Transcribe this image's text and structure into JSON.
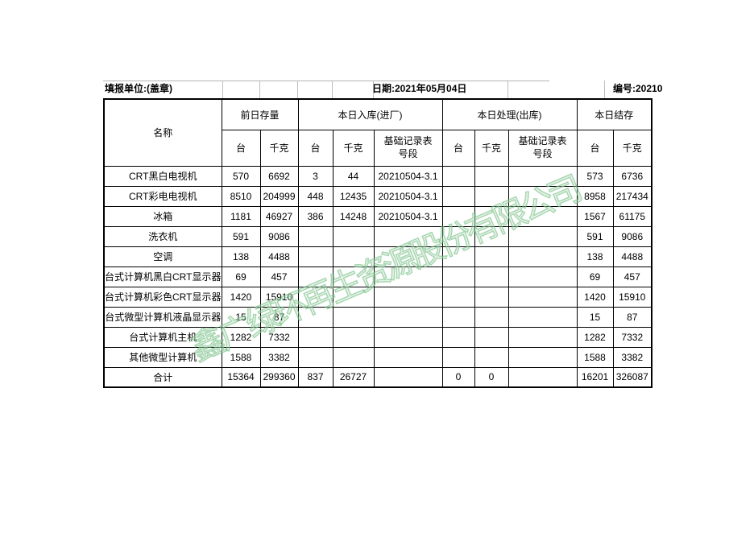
{
  "top_bar": {
    "unit": "填报单位:(盖章)",
    "date": "日期:2021年05月04日",
    "number": "编号:20210"
  },
  "table": {
    "name_header": "名称",
    "groups": [
      {
        "label": "前日存量",
        "cols": [
          "台",
          "千克"
        ]
      },
      {
        "label": "本日入库(进厂)",
        "cols": [
          "台",
          "千克",
          "基础记录表号段"
        ]
      },
      {
        "label": "本日处理(出库)",
        "cols": [
          "台",
          "千克",
          "基础记录表号段"
        ]
      },
      {
        "label": "本日结存",
        "cols": [
          "台",
          "千克"
        ]
      }
    ],
    "rows": [
      {
        "name": "CRT黑白电视机",
        "cells": [
          "570",
          "6692",
          "3",
          "44",
          "20210504-3.1",
          "",
          "",
          "",
          "573",
          "6736"
        ]
      },
      {
        "name": "CRT彩电电视机",
        "cells": [
          "8510",
          "204999",
          "448",
          "12435",
          "20210504-3.1",
          "",
          "",
          "",
          "8958",
          "217434"
        ]
      },
      {
        "name": "冰箱",
        "cells": [
          "1181",
          "46927",
          "386",
          "14248",
          "20210504-3.1",
          "",
          "",
          "",
          "1567",
          "61175"
        ]
      },
      {
        "name": "洗衣机",
        "cells": [
          "591",
          "9086",
          "",
          "",
          "",
          "",
          "",
          "",
          "591",
          "9086"
        ]
      },
      {
        "name": "空调",
        "cells": [
          "138",
          "4488",
          "",
          "",
          "",
          "",
          "",
          "",
          "138",
          "4488"
        ]
      },
      {
        "name": "台式计算机黑白CRT显示器",
        "cells": [
          "69",
          "457",
          "",
          "",
          "",
          "",
          "",
          "",
          "69",
          "457"
        ]
      },
      {
        "name": "台式计算机彩色CRT显示器",
        "cells": [
          "1420",
          "15910",
          "",
          "",
          "",
          "",
          "",
          "",
          "1420",
          "15910"
        ]
      },
      {
        "name": "台式微型计算机液晶显示器",
        "cells": [
          "15",
          "87",
          "",
          "",
          "",
          "",
          "",
          "",
          "15",
          "87"
        ]
      },
      {
        "name": "台式计算机主机",
        "cells": [
          "1282",
          "7332",
          "",
          "",
          "",
          "",
          "",
          "",
          "1282",
          "7332"
        ]
      },
      {
        "name": "其他微型计算机",
        "cells": [
          "1588",
          "3382",
          "",
          "",
          "",
          "",
          "",
          "",
          "1588",
          "3382"
        ]
      },
      {
        "name": "合计",
        "cells": [
          "15364",
          "299360",
          "837",
          "26727",
          "",
          "0",
          "0",
          "",
          "16201",
          "326087"
        ]
      }
    ]
  },
  "watermark": {
    "text": "鑫广绿环再生资源股份有限公司",
    "color": "#76c084"
  }
}
